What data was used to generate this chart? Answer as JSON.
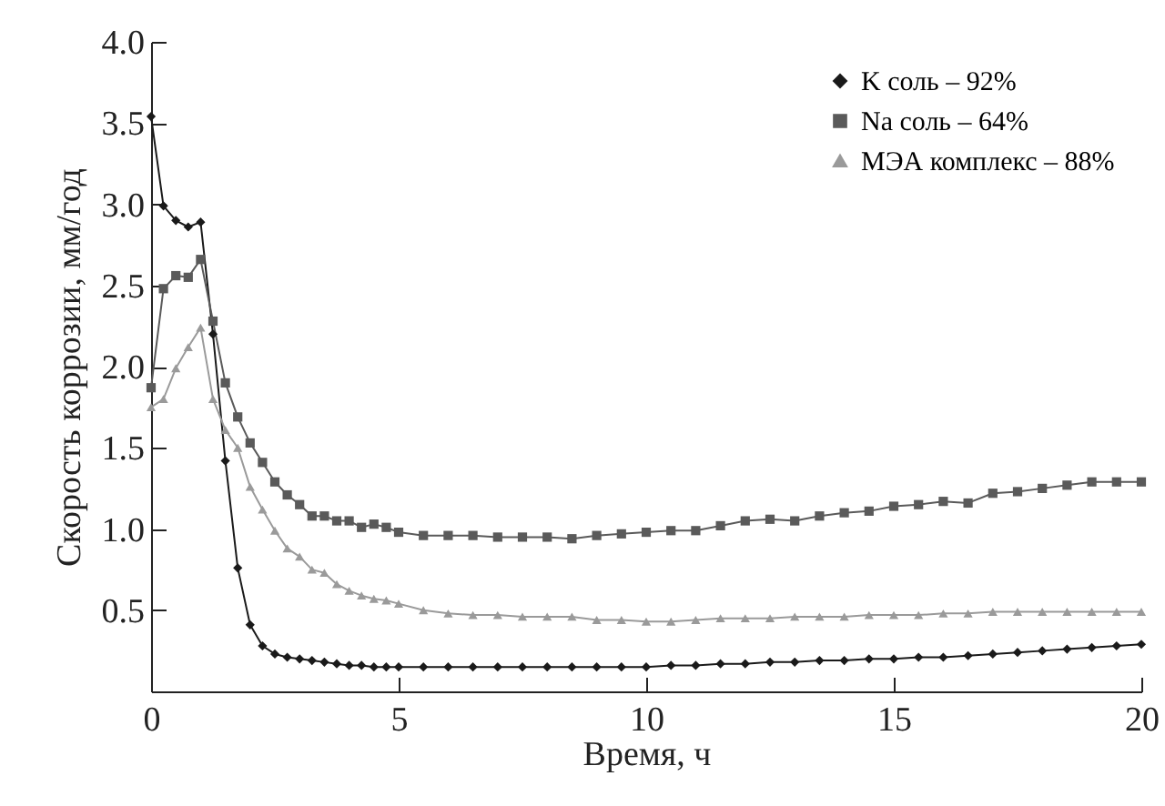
{
  "chart_data": {
    "type": "line",
    "xlabel": "Время, ч",
    "ylabel": "Скорость коррозии, мм/год",
    "x": [
      0,
      0.25,
      0.5,
      0.75,
      1,
      1.25,
      1.5,
      1.75,
      2,
      2.25,
      2.5,
      2.75,
      3,
      3.25,
      3.5,
      3.75,
      4,
      4.25,
      4.5,
      4.75,
      5,
      5.5,
      6,
      6.5,
      7,
      7.5,
      8,
      8.5,
      9,
      9.5,
      10,
      10.5,
      11,
      11.5,
      12,
      12.5,
      13,
      13.5,
      14,
      14.5,
      15,
      15.5,
      16,
      16.5,
      17,
      17.5,
      18,
      18.5,
      19,
      19.5,
      20
    ],
    "series": [
      {
        "name": "K соль – 92%",
        "color": "#1a1a1a",
        "marker": "diamond",
        "values": [
          3.54,
          2.99,
          2.9,
          2.86,
          2.89,
          2.2,
          1.42,
          0.76,
          0.41,
          0.28,
          0.23,
          0.21,
          0.2,
          0.19,
          0.18,
          0.17,
          0.16,
          0.16,
          0.15,
          0.15,
          0.15,
          0.15,
          0.15,
          0.15,
          0.15,
          0.15,
          0.15,
          0.15,
          0.15,
          0.15,
          0.15,
          0.16,
          0.16,
          0.17,
          0.17,
          0.18,
          0.18,
          0.19,
          0.19,
          0.2,
          0.2,
          0.21,
          0.21,
          0.22,
          0.23,
          0.24,
          0.25,
          0.26,
          0.27,
          0.28,
          0.29
        ]
      },
      {
        "name": "Na соль – 64%",
        "color": "#5a5a5a",
        "marker": "square",
        "values": [
          1.87,
          2.48,
          2.56,
          2.55,
          2.66,
          2.28,
          1.9,
          1.69,
          1.53,
          1.41,
          1.29,
          1.21,
          1.15,
          1.08,
          1.08,
          1.05,
          1.05,
          1.01,
          1.03,
          1.01,
          0.98,
          0.96,
          0.96,
          0.96,
          0.95,
          0.95,
          0.95,
          0.94,
          0.96,
          0.97,
          0.98,
          0.99,
          0.99,
          1.02,
          1.05,
          1.06,
          1.05,
          1.08,
          1.1,
          1.11,
          1.14,
          1.15,
          1.17,
          1.16,
          1.22,
          1.23,
          1.25,
          1.27,
          1.29,
          1.29,
          1.29
        ]
      },
      {
        "name": "МЭА комплекс – 88%",
        "color": "#9a9a9a",
        "marker": "triangle",
        "values": [
          1.75,
          1.8,
          1.99,
          2.12,
          2.24,
          1.8,
          1.61,
          1.5,
          1.26,
          1.12,
          0.99,
          0.88,
          0.83,
          0.75,
          0.73,
          0.66,
          0.62,
          0.59,
          0.57,
          0.56,
          0.54,
          0.5,
          0.48,
          0.47,
          0.47,
          0.46,
          0.46,
          0.46,
          0.44,
          0.44,
          0.43,
          0.43,
          0.44,
          0.45,
          0.45,
          0.45,
          0.46,
          0.46,
          0.46,
          0.47,
          0.47,
          0.47,
          0.48,
          0.48,
          0.49,
          0.49,
          0.49,
          0.49,
          0.49,
          0.49,
          0.49
        ]
      }
    ],
    "xlim": [
      0,
      20
    ],
    "xticks": [
      0,
      5,
      10,
      15,
      20
    ],
    "ylim": [
      0,
      4
    ],
    "yticks": [
      0.5,
      {
        "value": 1,
        "label": "1.0"
      },
      1.5,
      {
        "value": 2,
        "label": "2.0"
      },
      2.5,
      {
        "value": 3,
        "label": "3.0"
      },
      3.5,
      {
        "value": 4,
        "label": "4.0"
      }
    ],
    "grid": false,
    "legend": "top right",
    "line_style": "solid"
  }
}
